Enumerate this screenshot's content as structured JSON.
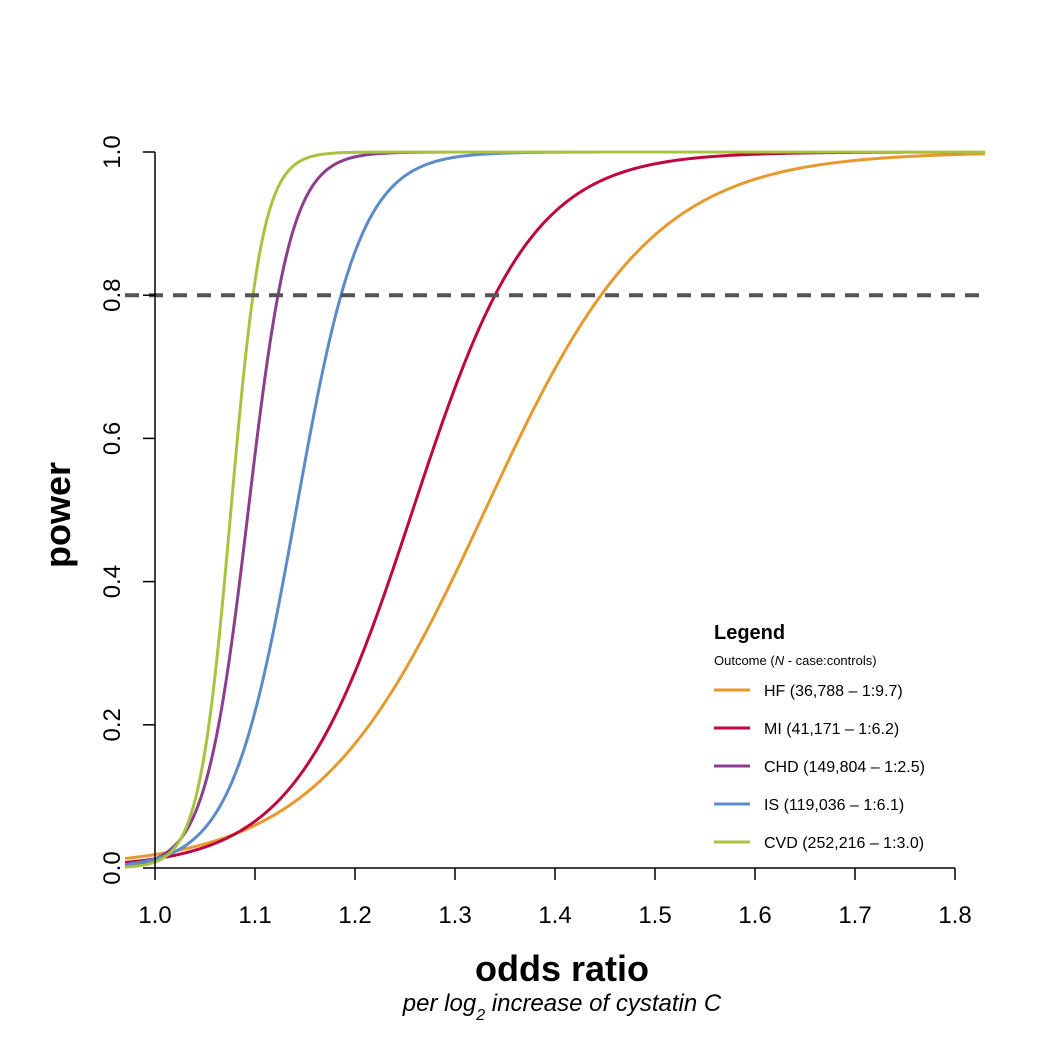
{
  "chart_data": {
    "type": "line",
    "xlabel": "odds ratio",
    "xlabel_sub_prefix": "per log",
    "xlabel_sub_subscript": "2",
    "xlabel_sub_suffix": " increase of cystatin C",
    "ylabel": "power",
    "xlim": [
      0.97,
      1.83
    ],
    "ylim": [
      0.0,
      1.0
    ],
    "x_ticks": [
      1.0,
      1.1,
      1.2,
      1.3,
      1.4,
      1.5,
      1.6,
      1.7,
      1.8
    ],
    "x_tick_labels": [
      "1.0",
      "1.1",
      "1.2",
      "1.3",
      "1.4",
      "1.5",
      "1.6",
      "1.7",
      "1.8"
    ],
    "y_ticks": [
      0.0,
      0.2,
      0.4,
      0.6,
      0.8,
      1.0
    ],
    "y_tick_labels": [
      "0.0",
      "0.2",
      "0.4",
      "0.6",
      "0.8",
      "1.0"
    ],
    "reference_line": {
      "y": 0.8,
      "style": "dashed",
      "color": "#555555"
    },
    "grid": false,
    "legend": {
      "title": "Legend",
      "subtitle_prefix": "Outcome (",
      "subtitle_italic": "N",
      "subtitle_suffix": " - case:controls)",
      "placement": "bottom-right"
    },
    "series": [
      {
        "name": "HF (36,788 – 1:9.7)",
        "color": "#E69A2E",
        "x80": 1.446,
        "scale": 0.0835
      },
      {
        "name": "MI (41,171 – 1:6.2)",
        "color": "#C0063F",
        "x80": 1.34,
        "scale": 0.0593
      },
      {
        "name": "CHD (149,804 – 1:2.5)",
        "color": "#8C3D8C",
        "x80": 1.123,
        "scale": 0.0214
      },
      {
        "name": "IS (119,036 – 1:6.1)",
        "color": "#5B8CC8",
        "x80": 1.186,
        "scale": 0.0323
      },
      {
        "name": "CVD (252,216 – 1:3.0)",
        "color": "#A9C23F",
        "x80": 1.098,
        "scale": 0.0159
      }
    ]
  }
}
